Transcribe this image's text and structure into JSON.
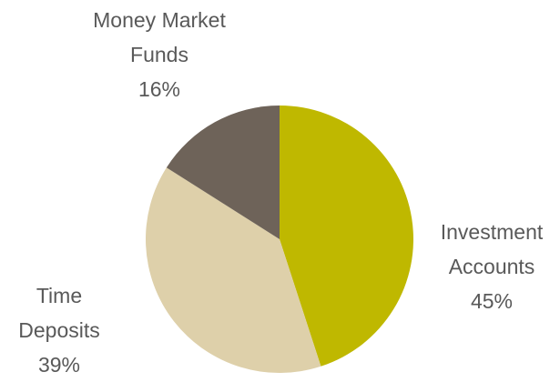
{
  "chart_data": {
    "type": "pie",
    "categories": [
      "Investment Accounts",
      "Time Deposits",
      "Money Market Funds"
    ],
    "values": [
      45,
      39,
      16
    ],
    "value_labels": [
      "45%",
      "39%",
      "16%"
    ],
    "colors": [
      "#bfb800",
      "#ded0aa",
      "#6e6359"
    ]
  }
}
